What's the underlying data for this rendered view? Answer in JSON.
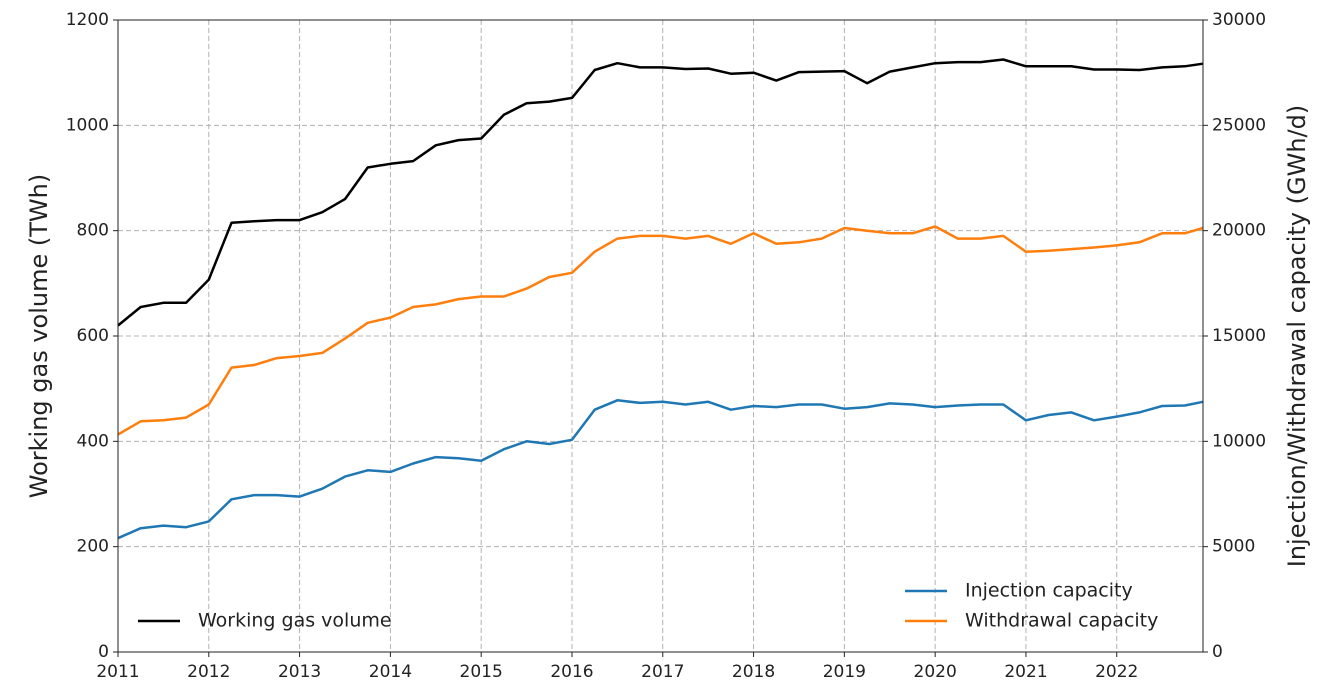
{
  "chart_data": {
    "type": "line",
    "ylabel": "Working gas volume (TWh)",
    "y2label": "Injection/Withdrawal capacity (GWh/d)",
    "x": [
      2011.0,
      2011.25,
      2011.5,
      2011.75,
      2012.0,
      2012.25,
      2012.5,
      2012.75,
      2013.0,
      2013.25,
      2013.5,
      2013.75,
      2014.0,
      2014.25,
      2014.5,
      2014.75,
      2015.0,
      2015.25,
      2015.5,
      2015.75,
      2016.0,
      2016.25,
      2016.5,
      2016.75,
      2017.0,
      2017.25,
      2017.5,
      2017.75,
      2018.0,
      2018.25,
      2018.5,
      2018.75,
      2019.0,
      2019.25,
      2019.5,
      2019.75,
      2020.0,
      2020.25,
      2020.5,
      2020.75,
      2021.0,
      2021.25,
      2021.5,
      2021.75,
      2022.0,
      2022.25,
      2022.5,
      2022.75,
      2022.95
    ],
    "series": [
      {
        "name": "Working gas volume",
        "color": "#000000",
        "axis": "y",
        "values": [
          620,
          655,
          663,
          663,
          707,
          815,
          818,
          820,
          820,
          835,
          860,
          920,
          927,
          932,
          962,
          972,
          975,
          1020,
          1042,
          1045,
          1052,
          1105,
          1118,
          1110,
          1110,
          1107,
          1108,
          1098,
          1100,
          1085,
          1101,
          1102,
          1103,
          1080,
          1102,
          1110,
          1118,
          1120,
          1120,
          1125,
          1112,
          1112,
          1112,
          1106,
          1106,
          1105,
          1110,
          1112,
          1117
        ]
      },
      {
        "name": "Injection capacity",
        "color": "#1f77b4",
        "axis": "y2",
        "values": [
          5400,
          5875,
          6000,
          5925,
          6200,
          7250,
          7450,
          7450,
          7375,
          7750,
          8325,
          8625,
          8550,
          8950,
          9250,
          9200,
          9075,
          9625,
          10000,
          9875,
          10075,
          11500,
          11950,
          11825,
          11875,
          11750,
          11875,
          11500,
          11675,
          11625,
          11750,
          11750,
          11550,
          11625,
          11800,
          11750,
          11625,
          11700,
          11750,
          11750,
          11000,
          11250,
          11375,
          11000,
          11175,
          11375,
          11675,
          11700,
          11875
        ]
      },
      {
        "name": "Withdrawal capacity",
        "color": "#ff7f0e",
        "axis": "y2",
        "values": [
          10325,
          10950,
          11000,
          11125,
          11750,
          13500,
          13625,
          13950,
          14050,
          14200,
          14875,
          15625,
          15875,
          16375,
          16500,
          16750,
          16875,
          16875,
          17250,
          17800,
          18000,
          19000,
          19625,
          19750,
          19750,
          19625,
          19750,
          19375,
          19875,
          19375,
          19450,
          19625,
          20125,
          20000,
          19875,
          19875,
          20200,
          19625,
          19625,
          19750,
          19000,
          19050,
          19125,
          19200,
          19300,
          19450,
          19875,
          19875,
          20125
        ]
      }
    ],
    "xlim": [
      2011,
      2022.95
    ],
    "xticks": [
      2011,
      2012,
      2013,
      2014,
      2015,
      2016,
      2017,
      2018,
      2019,
      2020,
      2021,
      2022
    ],
    "ylim": [
      0,
      1200
    ],
    "yticks": [
      0,
      200,
      400,
      600,
      800,
      1000,
      1200
    ],
    "y2lim": [
      0,
      30000
    ],
    "y2ticks": [
      0,
      5000,
      10000,
      15000,
      20000,
      25000,
      30000
    ],
    "grid": true,
    "legend_loc": "lower left",
    "legend2_loc": "lower right"
  }
}
